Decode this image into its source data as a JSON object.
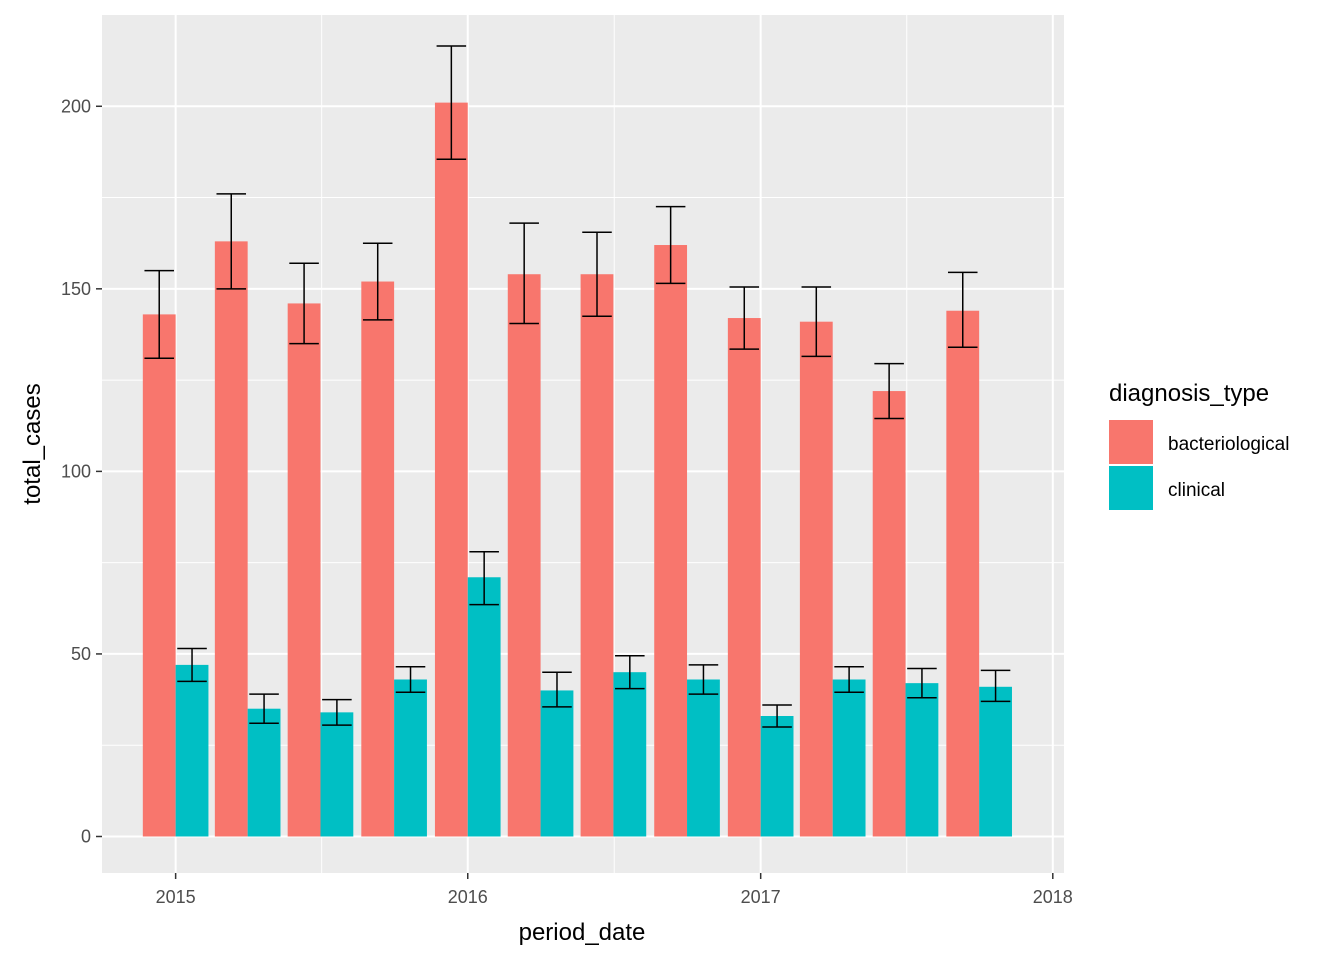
{
  "chart_data": {
    "type": "bar",
    "title": "",
    "xlabel": "period_date",
    "ylabel": "total_cases",
    "ylim": [
      -10,
      225
    ],
    "xlim": [
      "2014-10-01",
      "2018-01-15"
    ],
    "y_ticks": [
      0,
      50,
      100,
      150,
      200
    ],
    "x_ticks": [
      "2015-01-01",
      "2016-01-01",
      "2017-01-01",
      "2018-01-01"
    ],
    "x_tick_labels": [
      "2015",
      "2016",
      "2017",
      "2018"
    ],
    "grid": true,
    "background": "#ebebeb",
    "legend": {
      "title": "diagnosis_type",
      "placement": "right",
      "entries": [
        {
          "label": "bacteriological",
          "color": "#f8766d"
        },
        {
          "label": "clinical",
          "color": "#00bfc4"
        }
      ]
    },
    "periods": [
      "2015-01-01",
      "2015-04-01",
      "2015-07-01",
      "2015-10-01",
      "2016-01-01",
      "2016-04-01",
      "2016-07-01",
      "2016-10-01",
      "2017-01-01",
      "2017-04-01",
      "2017-07-01",
      "2017-10-01"
    ],
    "series": [
      {
        "name": "bacteriological",
        "color": "#f8766d",
        "values": [
          143,
          163,
          146,
          152,
          201,
          154,
          154,
          162,
          142,
          141,
          122,
          144
        ],
        "error_low": [
          131,
          150,
          135,
          141.5,
          185.5,
          140.5,
          142.5,
          151.5,
          133.5,
          131.5,
          114.5,
          134
        ],
        "error_high": [
          155,
          176,
          157,
          162.5,
          216.5,
          168,
          165.5,
          172.5,
          150.5,
          150.5,
          129.5,
          154.5
        ]
      },
      {
        "name": "clinical",
        "color": "#00bfc4",
        "values": [
          47,
          35,
          34,
          43,
          71,
          40,
          45,
          43,
          33,
          43,
          42,
          41
        ],
        "error_low": [
          42.5,
          31,
          30.5,
          39.5,
          63.5,
          35.5,
          40.5,
          39,
          30,
          39.5,
          38,
          37
        ],
        "error_high": [
          51.5,
          39,
          37.5,
          46.5,
          78,
          45,
          49.5,
          47,
          36,
          46.5,
          46,
          45.5
        ]
      }
    ]
  }
}
